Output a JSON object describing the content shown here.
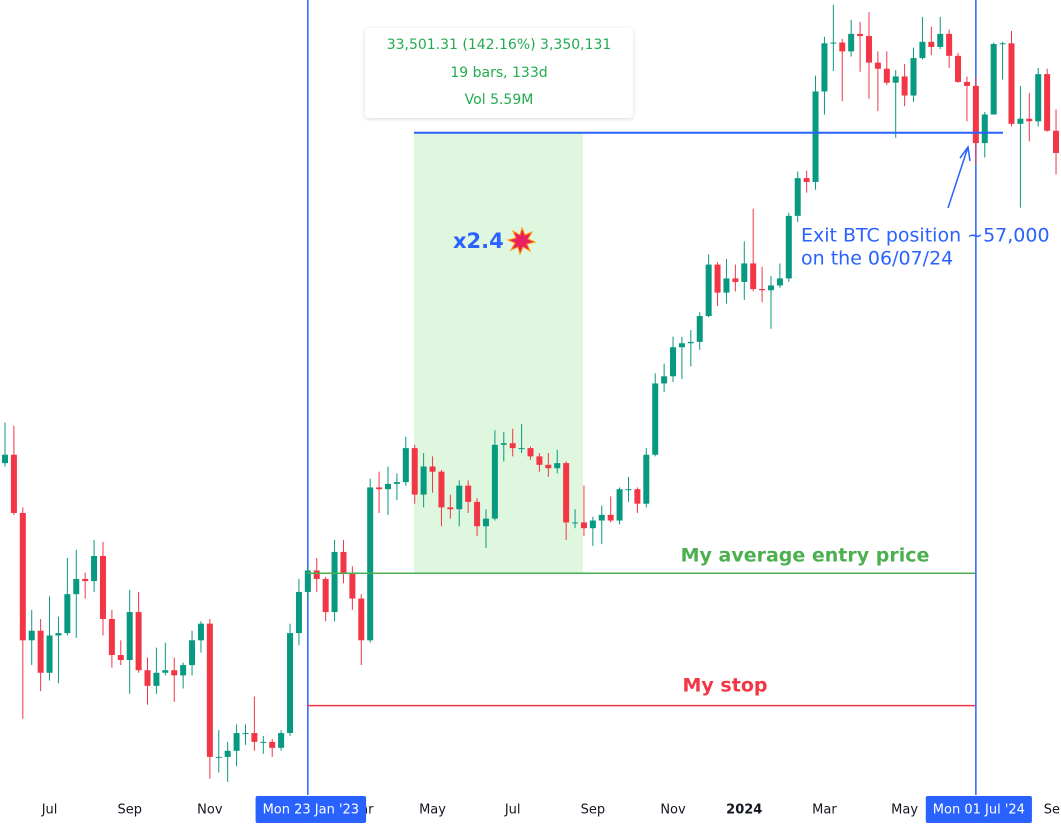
{
  "chart_data": {
    "type": "candlestick",
    "log_scale": true,
    "ylim": [
      15100,
      74500
    ],
    "up_color": "#089981",
    "down_color": "#f23645",
    "categories": [
      null,
      null,
      null,
      null,
      null,
      "Jul",
      null,
      null,
      null,
      null,
      null,
      null,
      null,
      null,
      "Sep",
      null,
      null,
      null,
      null,
      null,
      null,
      null,
      null,
      "Nov",
      null,
      null,
      null,
      null,
      null,
      null,
      null,
      null,
      null,
      null,
      "Mon 23 Jan '23",
      null,
      null,
      null,
      null,
      null,
      "Mar",
      null,
      null,
      null,
      null,
      null,
      null,
      null,
      "May",
      null,
      null,
      null,
      null,
      null,
      null,
      null,
      null,
      "Jul",
      null,
      null,
      null,
      null,
      null,
      null,
      null,
      null,
      "Sep",
      null,
      null,
      null,
      null,
      null,
      null,
      null,
      null,
      "Nov",
      null,
      null,
      null,
      null,
      null,
      null,
      null,
      "2024",
      null,
      null,
      null,
      null,
      null,
      null,
      null,
      null,
      "Mar",
      null,
      null,
      null,
      null,
      null,
      null,
      null,
      null,
      "May",
      null,
      null,
      null,
      null,
      null,
      null,
      null,
      "Mon 01 Jul '24",
      null,
      null,
      null,
      null,
      null,
      null,
      null,
      null,
      "Sep"
    ],
    "candles": [
      [
        29400,
        31900,
        29200,
        29900
      ],
      [
        29900,
        31700,
        26500,
        26600
      ],
      [
        26600,
        26900,
        17600,
        20600
      ],
      [
        20600,
        21900,
        19600,
        21000
      ],
      [
        21000,
        21500,
        18600,
        19300
      ],
      [
        19300,
        22500,
        19000,
        20800
      ],
      [
        20800,
        21600,
        18900,
        20900
      ],
      [
        20900,
        24300,
        20800,
        22600
      ],
      [
        22600,
        24700,
        20700,
        23300
      ],
      [
        23300,
        23600,
        22400,
        23200
      ],
      [
        23200,
        25200,
        22700,
        24400
      ],
      [
        24400,
        25100,
        20800,
        21500
      ],
      [
        21500,
        21900,
        19500,
        20000
      ],
      [
        20000,
        20600,
        19600,
        19800
      ],
      [
        19800,
        22800,
        18500,
        21800
      ],
      [
        21800,
        22700,
        19300,
        19400
      ],
      [
        19400,
        19900,
        18100,
        18800
      ],
      [
        18800,
        20300,
        18500,
        19300
      ],
      [
        19300,
        20500,
        19200,
        19400
      ],
      [
        19400,
        19900,
        18200,
        19200
      ],
      [
        19200,
        19700,
        18700,
        19600
      ],
      [
        19600,
        21000,
        19200,
        20600
      ],
      [
        20600,
        21400,
        20100,
        21300
      ],
      [
        21300,
        21500,
        15600,
        16300
      ],
      [
        16300,
        17200,
        15800,
        16300
      ],
      [
        16300,
        16800,
        15500,
        16500
      ],
      [
        16500,
        17400,
        16000,
        17100
      ],
      [
        17100,
        17400,
        16700,
        17100
      ],
      [
        17100,
        18400,
        16500,
        16800
      ],
      [
        16800,
        17000,
        16400,
        16800
      ],
      [
        16800,
        16900,
        16300,
        16600
      ],
      [
        16600,
        17200,
        16500,
        17100
      ],
      [
        17100,
        21300,
        17000,
        20900
      ],
      [
        20900,
        23300,
        20400,
        22700
      ],
      [
        22700,
        23900,
        22300,
        23700
      ],
      [
        23700,
        24300,
        22700,
        23300
      ],
      [
        23300,
        23400,
        21400,
        21800
      ],
      [
        21800,
        25200,
        21400,
        24600
      ],
      [
        24600,
        25200,
        23100,
        23600
      ],
      [
        23600,
        23900,
        21900,
        22400
      ],
      [
        22400,
        22600,
        19600,
        20600
      ],
      [
        20600,
        28500,
        20500,
        28000
      ],
      [
        28000,
        28900,
        26600,
        27900
      ],
      [
        27900,
        29200,
        26500,
        28200
      ],
      [
        28200,
        28800,
        27300,
        28300
      ],
      [
        28300,
        31000,
        28100,
        30300
      ],
      [
        30300,
        30500,
        27100,
        27600
      ],
      [
        27600,
        30000,
        26900,
        29200
      ],
      [
        29200,
        29800,
        27700,
        28900
      ],
      [
        28900,
        29000,
        25900,
        26900
      ],
      [
        26900,
        27600,
        26300,
        26800
      ],
      [
        26800,
        28400,
        25900,
        28100
      ],
      [
        28100,
        28400,
        26600,
        27200
      ],
      [
        27200,
        27400,
        25400,
        25900
      ],
      [
        25900,
        26800,
        24800,
        26300
      ],
      [
        26300,
        31400,
        26200,
        30500
      ],
      [
        30500,
        31300,
        29500,
        30600
      ],
      [
        30600,
        31500,
        29800,
        30300
      ],
      [
        30300,
        31800,
        30000,
        30300
      ],
      [
        30300,
        30400,
        29600,
        29800
      ],
      [
        29800,
        30000,
        28900,
        29300
      ],
      [
        29300,
        30000,
        28600,
        29100
      ],
      [
        29100,
        30200,
        28800,
        29400
      ],
      [
        29400,
        29500,
        25200,
        26100
      ],
      [
        26100,
        26800,
        25800,
        26100
      ],
      [
        26100,
        28100,
        25400,
        25800
      ],
      [
        25800,
        26400,
        24900,
        26200
      ],
      [
        26200,
        27000,
        25000,
        26500
      ],
      [
        26500,
        27500,
        26100,
        26200
      ],
      [
        26200,
        28000,
        26000,
        27900
      ],
      [
        27900,
        28600,
        27200,
        27900
      ],
      [
        27900,
        28000,
        26600,
        27100
      ],
      [
        27100,
        30300,
        26900,
        29900
      ],
      [
        29900,
        35200,
        29800,
        34500
      ],
      [
        34500,
        35900,
        33900,
        35000
      ],
      [
        35000,
        37900,
        34600,
        37100
      ],
      [
        37100,
        37900,
        34800,
        37400
      ],
      [
        37400,
        38400,
        35700,
        37500
      ],
      [
        37500,
        39800,
        36900,
        39500
      ],
      [
        39500,
        44700,
        39400,
        43800
      ],
      [
        43800,
        44000,
        40300,
        41400
      ],
      [
        41400,
        44300,
        40500,
        42600
      ],
      [
        42600,
        43800,
        41500,
        42300
      ],
      [
        42300,
        45900,
        40800,
        43900
      ],
      [
        43900,
        49000,
        41500,
        41700
      ],
      [
        41700,
        43600,
        40600,
        41600
      ],
      [
        41600,
        42800,
        38500,
        42000
      ],
      [
        42000,
        43900,
        41800,
        42600
      ],
      [
        42600,
        48600,
        42300,
        48300
      ],
      [
        48300,
        52800,
        47700,
        52100
      ],
      [
        52100,
        52900,
        50600,
        51700
      ],
      [
        51700,
        64000,
        50900,
        62000
      ],
      [
        62000,
        69200,
        59200,
        68300
      ],
      [
        68300,
        73800,
        64600,
        68400
      ],
      [
        68400,
        68900,
        60800,
        67200
      ],
      [
        67200,
        71600,
        66500,
        69600
      ],
      [
        69600,
        71300,
        64500,
        69300
      ],
      [
        69300,
        72700,
        61100,
        65700
      ],
      [
        65700,
        67200,
        59600,
        64900
      ],
      [
        64900,
        67200,
        62800,
        63100
      ],
      [
        63100,
        64700,
        56500,
        63900
      ],
      [
        63900,
        65500,
        60200,
        61500
      ],
      [
        61500,
        67700,
        60700,
        66300
      ],
      [
        66300,
        72000,
        66100,
        68500
      ],
      [
        68500,
        70600,
        66700,
        67800
      ],
      [
        67800,
        72000,
        67500,
        69600
      ],
      [
        69600,
        70200,
        65000,
        66600
      ],
      [
        66600,
        67000,
        63100,
        63200
      ],
      [
        63200,
        63900,
        58400,
        62700
      ],
      [
        62700,
        63800,
        53500,
        55900
      ],
      [
        55900,
        59500,
        54300,
        59200
      ],
      [
        59200,
        68400,
        59200,
        68200
      ],
      [
        68200,
        68500,
        63500,
        68300
      ],
      [
        68300,
        70000,
        57800,
        58100
      ],
      [
        58100,
        62700,
        49100,
        58700
      ],
      [
        58700,
        61800,
        56100,
        58400
      ],
      [
        58400,
        65000,
        57800,
        64200
      ],
      [
        64200,
        64900,
        57200,
        57300
      ],
      [
        57300,
        59800,
        52500,
        54800
      ]
    ],
    "exit_price": 57067,
    "entry_price": 23566,
    "stop_price": 18070,
    "measure": [
      "33,501.31 (142.16%) 3,350,131",
      "19 bars, 133d",
      "Vol 5.59M"
    ],
    "multiplier": "x2.4",
    "exit_note": [
      "Exit BTC position ~57,000",
      "on the 06/07/24"
    ],
    "entry_label": "My average entry price",
    "stop_label": "My stop"
  }
}
